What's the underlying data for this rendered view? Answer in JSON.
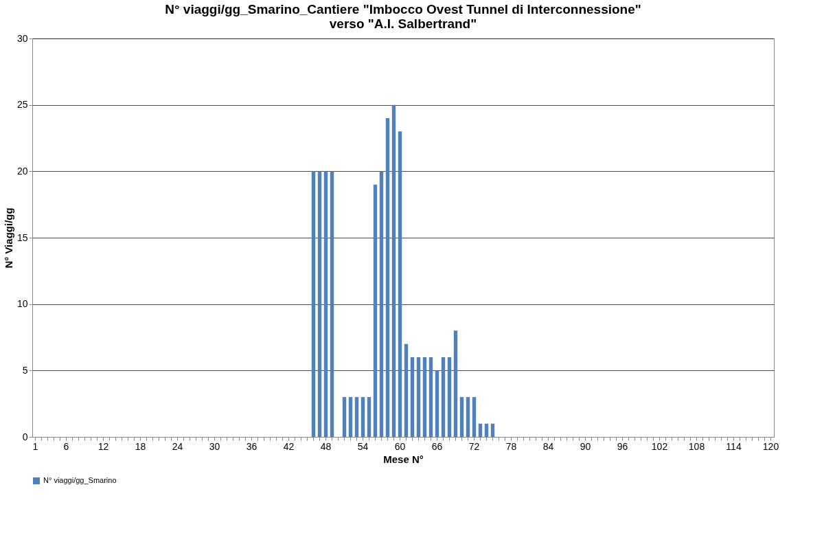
{
  "chart_data": {
    "type": "bar",
    "title": [
      "N° viaggi/gg_Smarino_Cantiere \"Imbocco Ovest  Tunnel di Interconnessione\"",
      "verso \"A.I. Salbertrand\""
    ],
    "xlabel": "Mese N°",
    "ylabel": "N° Viaggi/gg",
    "categories": [
      "1",
      null,
      null,
      null,
      null,
      "6",
      null,
      null,
      null,
      null,
      null,
      "12",
      null,
      null,
      null,
      null,
      null,
      "18",
      null,
      null,
      null,
      null,
      null,
      "24",
      null,
      null,
      null,
      null,
      null,
      "30",
      null,
      null,
      null,
      null,
      null,
      "36",
      null,
      null,
      null,
      null,
      null,
      "42",
      null,
      null,
      null,
      null,
      null,
      "48",
      null,
      null,
      null,
      null,
      null,
      "54",
      null,
      null,
      null,
      null,
      null,
      "60",
      null,
      null,
      null,
      null,
      null,
      "66",
      null,
      null,
      null,
      null,
      null,
      "72",
      null,
      null,
      null,
      null,
      null,
      "78",
      null,
      null,
      null,
      null,
      null,
      "84",
      null,
      null,
      null,
      null,
      null,
      "90",
      null,
      null,
      null,
      null,
      null,
      "96",
      null,
      null,
      null,
      null,
      null,
      "102",
      null,
      null,
      null,
      null,
      null,
      "108",
      null,
      null,
      null,
      null,
      null,
      "114",
      null,
      null,
      null,
      null,
      null,
      "120"
    ],
    "series": [
      {
        "name": "N° viaggi/gg_Smarino",
        "color": "#4f81bd",
        "values": [
          0,
          0,
          0,
          0,
          0,
          0,
          0,
          0,
          0,
          0,
          0,
          0,
          0,
          0,
          0,
          0,
          0,
          0,
          0,
          0,
          0,
          0,
          0,
          0,
          0,
          0,
          0,
          0,
          0,
          0,
          0,
          0,
          0,
          0,
          0,
          0,
          0,
          0,
          0,
          0,
          0,
          0,
          0,
          0,
          0,
          20,
          20,
          20,
          20,
          0,
          3,
          3,
          3,
          3,
          3,
          19,
          20,
          24,
          25,
          23,
          7,
          6,
          6,
          6,
          6,
          5,
          6,
          6,
          8,
          3,
          3,
          3,
          1,
          1,
          1,
          0,
          0,
          0,
          0,
          0,
          0,
          0,
          0,
          0,
          0,
          0,
          0,
          0,
          0,
          0,
          0,
          0,
          0,
          0,
          0,
          0,
          0,
          0,
          0,
          0,
          0,
          0,
          0,
          0,
          0,
          0,
          0,
          0,
          0,
          0,
          0,
          0,
          0,
          0,
          0,
          0,
          0,
          0,
          0,
          0
        ]
      }
    ],
    "ylim": [
      0,
      30
    ],
    "yticks": [
      0,
      5,
      10,
      15,
      20,
      25,
      30
    ],
    "grid": "y",
    "legend": "bottom"
  }
}
